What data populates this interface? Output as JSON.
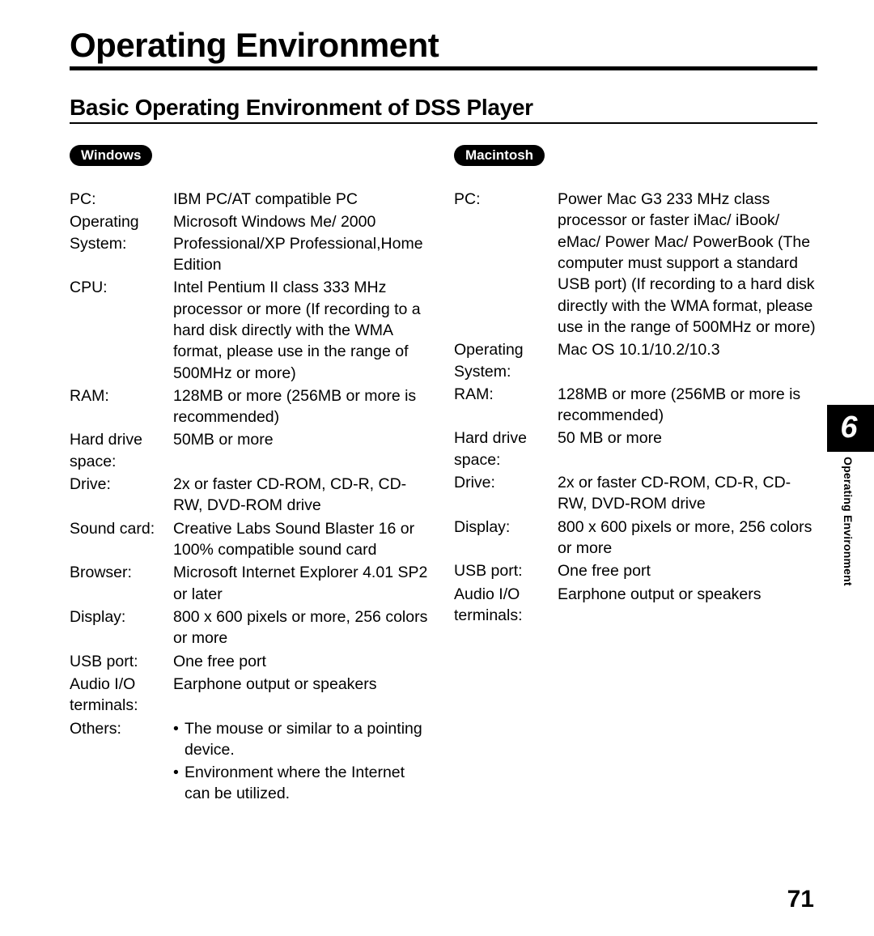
{
  "title": "Operating Environment",
  "subtitle": "Basic Operating Environment of DSS Player",
  "chapter_number": "6",
  "side_label": "Operating Environment",
  "page_number": "71",
  "windows": {
    "pill": "Windows",
    "specs": [
      {
        "label": "PC:",
        "value": "IBM PC/AT compatible PC"
      },
      {
        "label": "Operating System:",
        "value": "Microsoft Windows Me/ 2000 Professional/XP Professional,Home Edition"
      },
      {
        "label": "CPU:",
        "value": "Intel Pentium II class 333 MHz processor or more (If recording to a hard disk directly with the WMA format, please use in the range of 500MHz or more)"
      },
      {
        "label": "RAM:",
        "value": "128MB or more (256MB or more is recommended)"
      },
      {
        "label": "Hard drive space:",
        "value": "50MB or more"
      },
      {
        "label": "Drive:",
        "value": "2x or faster CD-ROM, CD-R, CD-RW, DVD-ROM drive"
      },
      {
        "label": "Sound card:",
        "value": "Creative Labs Sound Blaster 16 or 100% compatible sound card"
      },
      {
        "label": "Browser:",
        "value": "Microsoft Internet Explorer 4.01 SP2 or later"
      },
      {
        "label": "Display:",
        "value": "800 x 600 pixels or more, 256 colors or more"
      },
      {
        "label": "USB port:",
        "value": "One free port"
      },
      {
        "label": "Audio I/O terminals:",
        "value": "Earphone output or speakers"
      }
    ],
    "others_label": "Others:",
    "others_bullets": [
      "The mouse or similar to a pointing device.",
      "Environment where the Internet can be utilized."
    ]
  },
  "macintosh": {
    "pill": "Macintosh",
    "specs": [
      {
        "label": "PC:",
        "value": "Power Mac G3 233 MHz class processor or faster iMac/ iBook/ eMac/ Power Mac/ PowerBook\n(The computer must support a standard USB port)\n(If recording to a hard disk directly with the WMA format, please use in the range of 500MHz or more)"
      },
      {
        "label": "Operating System:",
        "value": "Mac OS 10.1/10.2/10.3"
      },
      {
        "label": "RAM:",
        "value": "128MB or more (256MB or more is recommended)"
      },
      {
        "label": "Hard drive space:",
        "value": "50 MB or more"
      },
      {
        "label": "Drive:",
        "value": "2x or faster CD-ROM, CD-R, CD-RW, DVD-ROM drive"
      },
      {
        "label": "Display:",
        "value": "800 x 600 pixels or more, 256 colors or more"
      },
      {
        "label": "USB port:",
        "value": "One free port"
      },
      {
        "label": "Audio I/O terminals:",
        "value": "Earphone output or speakers"
      }
    ]
  }
}
